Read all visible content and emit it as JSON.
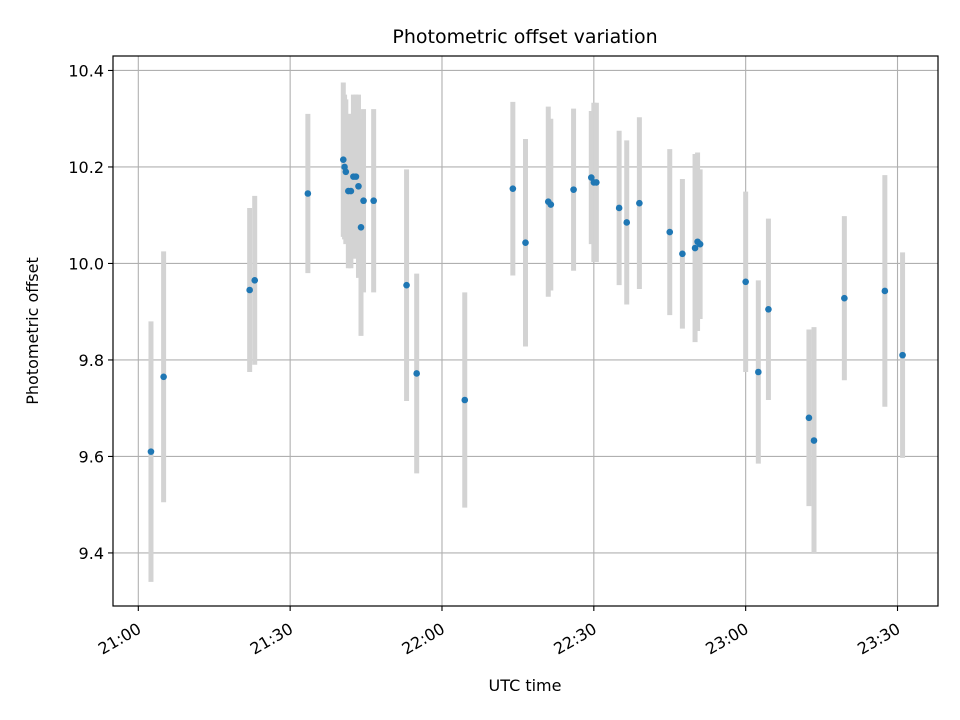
{
  "chart_data": {
    "type": "scatter",
    "title": "Photometric offset variation",
    "xlabel": "UTC time",
    "ylabel": "Photometric offset",
    "x_unit": "UTC",
    "xlim": [
      "20:55",
      "23:38"
    ],
    "ylim": [
      9.29,
      10.43
    ],
    "x_ticks": [
      "21:00",
      "21:30",
      "22:00",
      "22:30",
      "23:00",
      "23:30"
    ],
    "y_ticks": [
      "9.4",
      "9.6",
      "9.8",
      "10.0",
      "10.2",
      "10.4"
    ],
    "grid": true,
    "point_color": "#1f77b4",
    "errorbar_color": "#d3d3d3",
    "series": [
      {
        "x": [
          "21:02:30",
          "21:05:00",
          "21:22:00",
          "21:23:00",
          "21:33:30",
          "21:40:30",
          "21:40:45",
          "21:41:00",
          "21:41:30",
          "21:42:00",
          "21:42:30",
          "21:43:00",
          "21:43:30",
          "21:44:00",
          "21:44:30",
          "21:46:30",
          "21:53:00",
          "21:55:00",
          "22:04:30",
          "22:14:00",
          "22:16:30",
          "22:21:00",
          "22:21:30",
          "22:26:00",
          "22:29:30",
          "22:30:00",
          "22:30:30",
          "22:35:00",
          "22:36:30",
          "22:39:00",
          "22:45:00",
          "22:47:30",
          "22:50:00",
          "22:50:30",
          "22:51:00",
          "23:00:00",
          "23:02:30",
          "23:04:30",
          "23:12:30",
          "23:13:30",
          "23:19:30",
          "23:27:30",
          "23:31:00"
        ],
        "y": [
          9.61,
          9.765,
          9.945,
          9.965,
          10.145,
          10.215,
          10.2,
          10.19,
          10.15,
          10.15,
          10.18,
          10.18,
          10.16,
          10.075,
          10.13,
          10.13,
          9.955,
          9.772,
          9.717,
          10.155,
          10.043,
          10.128,
          10.122,
          10.153,
          10.178,
          10.168,
          10.168,
          10.115,
          10.085,
          10.125,
          10.065,
          10.02,
          10.032,
          10.045,
          10.04,
          9.962,
          9.775,
          9.905,
          9.68,
          9.633,
          9.928,
          9.943,
          9.81
        ],
        "yerr": [
          0.27,
          0.26,
          0.17,
          0.175,
          0.165,
          0.16,
          0.15,
          0.15,
          0.16,
          0.16,
          0.17,
          0.17,
          0.19,
          0.225,
          0.19,
          0.19,
          0.24,
          0.207,
          0.223,
          0.18,
          0.215,
          0.197,
          0.178,
          0.168,
          0.138,
          0.165,
          0.165,
          0.16,
          0.17,
          0.178,
          0.172,
          0.155,
          0.195,
          0.185,
          0.155,
          0.187,
          0.19,
          0.188,
          0.183,
          0.235,
          0.17,
          0.24,
          0.213
        ]
      }
    ]
  }
}
